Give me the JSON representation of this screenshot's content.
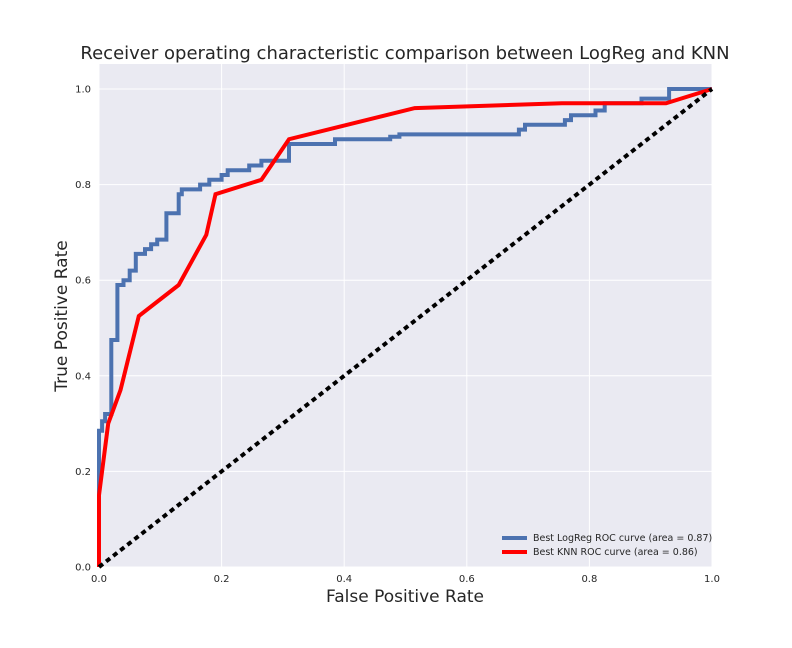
{
  "chart_data": {
    "type": "line",
    "title": "Receiver operating characteristic comparison between LogReg and KNN",
    "xlabel": "False Positive Rate",
    "ylabel": "True Positive Rate",
    "xlim": [
      0.0,
      1.0
    ],
    "ylim": [
      0.0,
      1.0
    ],
    "grid": true,
    "legend_position": "lower-right",
    "xticks": [
      "0.0",
      "0.2",
      "0.4",
      "0.6",
      "0.8",
      "1.0"
    ],
    "yticks": [
      "0.0",
      "0.2",
      "0.4",
      "0.6",
      "0.8",
      "1.0"
    ],
    "series": [
      {
        "name": "Best LogReg ROC curve (area = 0.87)",
        "color": "#4c72b0",
        "style": "step",
        "x": [
          0.0,
          0.0,
          0.005,
          0.005,
          0.01,
          0.01,
          0.02,
          0.02,
          0.03,
          0.03,
          0.04,
          0.04,
          0.05,
          0.05,
          0.06,
          0.06,
          0.075,
          0.075,
          0.085,
          0.085,
          0.095,
          0.095,
          0.11,
          0.11,
          0.13,
          0.13,
          0.135,
          0.135,
          0.165,
          0.165,
          0.18,
          0.18,
          0.2,
          0.2,
          0.21,
          0.21,
          0.245,
          0.245,
          0.265,
          0.265,
          0.31,
          0.31,
          0.385,
          0.385,
          0.475,
          0.475,
          0.49,
          0.49,
          0.685,
          0.685,
          0.695,
          0.695,
          0.76,
          0.76,
          0.77,
          0.77,
          0.81,
          0.81,
          0.825,
          0.825,
          0.885,
          0.885,
          0.93,
          0.93,
          1.0
        ],
        "y": [
          0.0,
          0.285,
          0.285,
          0.305,
          0.305,
          0.32,
          0.32,
          0.475,
          0.475,
          0.59,
          0.59,
          0.6,
          0.6,
          0.62,
          0.62,
          0.655,
          0.655,
          0.665,
          0.665,
          0.675,
          0.675,
          0.685,
          0.685,
          0.74,
          0.74,
          0.78,
          0.78,
          0.79,
          0.79,
          0.8,
          0.8,
          0.81,
          0.81,
          0.82,
          0.82,
          0.83,
          0.83,
          0.84,
          0.84,
          0.85,
          0.85,
          0.885,
          0.885,
          0.895,
          0.895,
          0.9,
          0.9,
          0.905,
          0.905,
          0.915,
          0.915,
          0.925,
          0.925,
          0.935,
          0.935,
          0.945,
          0.945,
          0.955,
          0.955,
          0.97,
          0.97,
          0.98,
          0.98,
          1.0,
          1.0
        ]
      },
      {
        "name": "Best KNN ROC curve (area = 0.86)",
        "color": "#ff0000",
        "style": "line",
        "x": [
          0.0,
          0.0,
          0.015,
          0.035,
          0.065,
          0.13,
          0.175,
          0.19,
          0.265,
          0.31,
          0.515,
          0.755,
          0.925,
          1.0
        ],
        "y": [
          0.0,
          0.15,
          0.3,
          0.37,
          0.525,
          0.59,
          0.695,
          0.78,
          0.81,
          0.895,
          0.96,
          0.97,
          0.97,
          1.0
        ]
      },
      {
        "name": "",
        "color": "#000000",
        "style": "dotted",
        "x": [
          0.0,
          1.0
        ],
        "y": [
          0.0,
          1.0
        ]
      }
    ]
  }
}
